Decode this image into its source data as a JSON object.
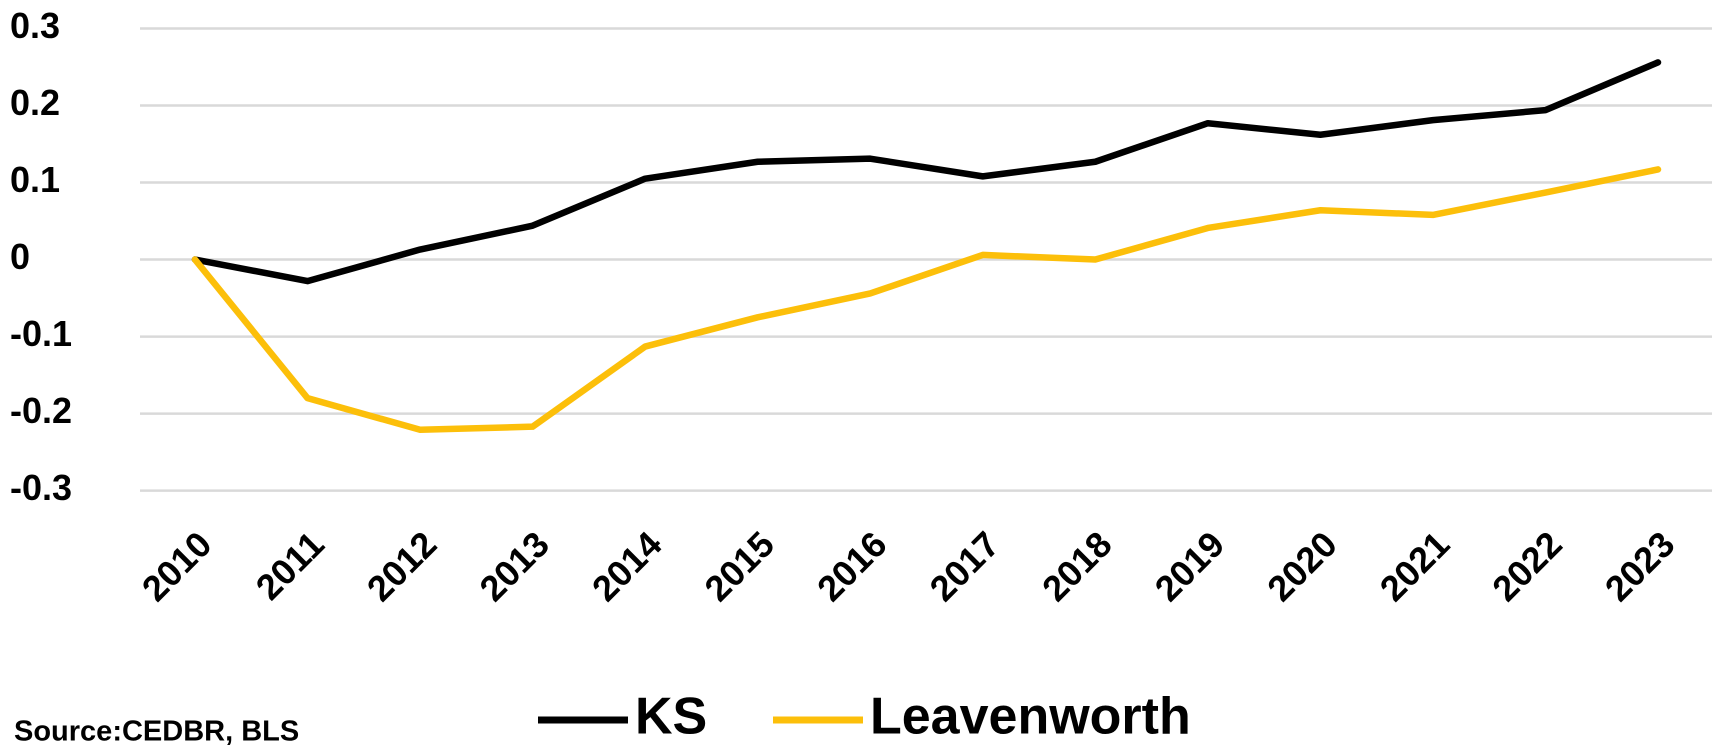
{
  "chart_data": {
    "type": "line",
    "categories": [
      "2010",
      "2011",
      "2012",
      "2013",
      "2014",
      "2015",
      "2016",
      "2017",
      "2018",
      "2019",
      "2020",
      "2021",
      "2022",
      "2023"
    ],
    "series": [
      {
        "name": "KS",
        "color": "#000000",
        "values": [
          0,
          -0.028,
          0.013,
          0.044,
          0.105,
          0.127,
          0.131,
          0.108,
          0.127,
          0.177,
          0.162,
          0.181,
          0.194,
          0.256
        ]
      },
      {
        "name": "Leavenworth",
        "color": "#fcbf0a",
        "values": [
          0,
          -0.18,
          -0.221,
          -0.217,
          -0.113,
          -0.075,
          -0.044,
          0.006,
          0,
          0.041,
          0.064,
          0.058,
          0.087,
          0.117
        ]
      }
    ],
    "ylim": [
      -0.3,
      0.3
    ],
    "yticks": [
      0.3,
      0.2,
      0.1,
      0,
      -0.1,
      -0.2,
      -0.3
    ],
    "grid": true,
    "legend": "bottom",
    "source": "Source:CEDBR, BLS"
  }
}
